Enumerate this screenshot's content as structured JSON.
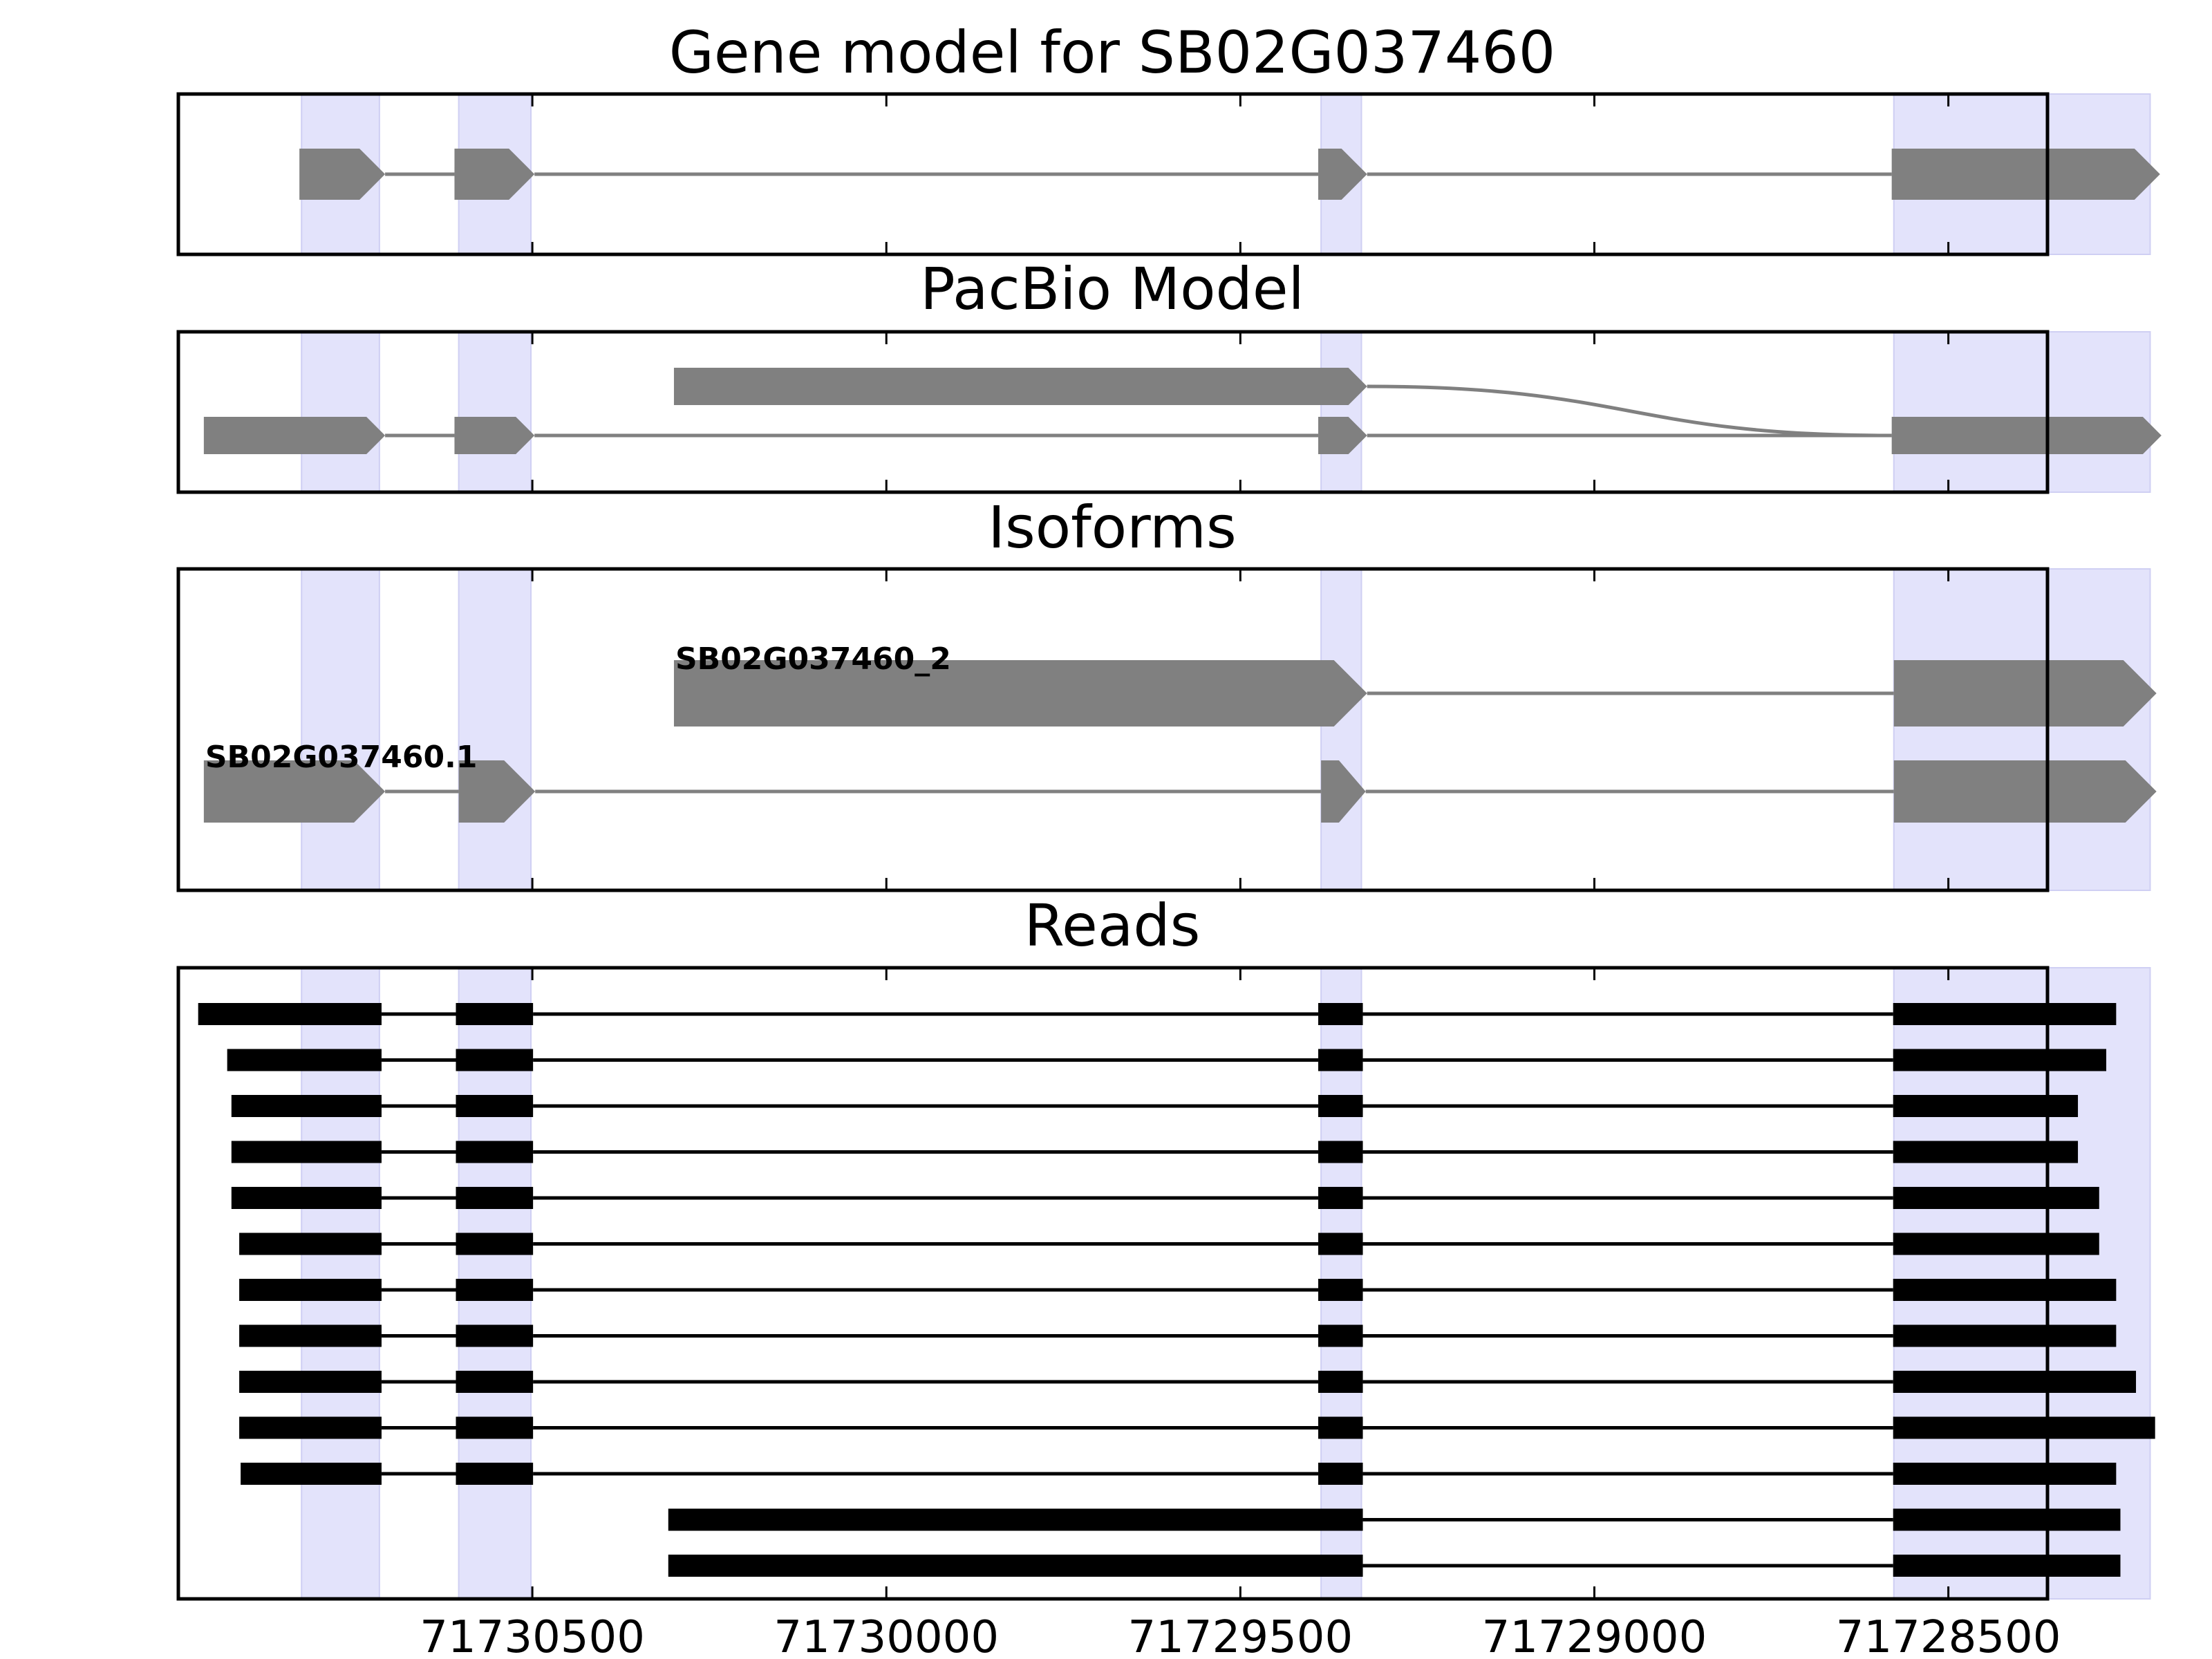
{
  "panels": [
    {
      "id": "gene",
      "title": "Gene model for SB02G037460"
    },
    {
      "id": "pacbio",
      "title": "PacBio Model"
    },
    {
      "id": "isoforms",
      "title": "Isoforms"
    },
    {
      "id": "reads",
      "title": "Reads"
    }
  ],
  "chart_data": {
    "type": "gene-structure",
    "x_axis": {
      "direction": "descending",
      "range": [
        71731000,
        71728360
      ],
      "ticks": [
        71730500,
        71730000,
        71729500,
        71729000,
        71728500
      ],
      "tick_labels": [
        "71730500",
        "71730000",
        "71729500",
        "71729000",
        "71728500"
      ]
    },
    "highlight_regions": [
      [
        71730826,
        71730716
      ],
      [
        71730604,
        71730502
      ],
      [
        71729386,
        71729329
      ],
      [
        71728577,
        71728215
      ]
    ],
    "colors": {
      "highlight": "#e3e3fb",
      "highlight_edge": "#cfcff3",
      "model": "#808080",
      "read": "#000000",
      "frame": "#000000"
    },
    "gene_model": [
      {
        "exons": [
          [
            71730829,
            71730708
          ],
          [
            71730610,
            71730497
          ],
          [
            71729390,
            71729321
          ],
          [
            71728580,
            71728201
          ]
        ]
      }
    ],
    "pacbio_model": [
      {
        "row": 0,
        "exons": [
          [
            71730964,
            71730708
          ],
          [
            71730610,
            71730497
          ],
          [
            71729390,
            71729321
          ],
          [
            71728580,
            71728199
          ]
        ]
      },
      {
        "row": 1,
        "exons": [
          [
            71730300,
            71729321
          ],
          [
            71728580,
            71728199
          ]
        ],
        "curved_intron": true
      }
    ],
    "isoforms": [
      {
        "name": "SB02G037460.1",
        "row": 0,
        "exons": [
          [
            71730964,
            71730708
          ],
          [
            71730604,
            71730496
          ],
          [
            71729386,
            71729323
          ],
          [
            71728577,
            71728206
          ]
        ]
      },
      {
        "name": "SB02G037460_2",
        "row": 1,
        "exons": [
          [
            71730300,
            71729321
          ],
          [
            71728577,
            71728206
          ]
        ]
      }
    ],
    "reads": [
      [
        [
          71730972,
          71730713
        ],
        [
          71730608,
          71730499
        ],
        [
          71729390,
          71729327
        ],
        [
          71728578,
          71728263
        ]
      ],
      [
        [
          71730931,
          71730713
        ],
        [
          71730608,
          71730499
        ],
        [
          71729390,
          71729327
        ],
        [
          71728578,
          71728277
        ]
      ],
      [
        [
          71730925,
          71730713
        ],
        [
          71730608,
          71730499
        ],
        [
          71729390,
          71729327
        ],
        [
          71728578,
          71728317
        ]
      ],
      [
        [
          71730925,
          71730713
        ],
        [
          71730608,
          71730499
        ],
        [
          71729390,
          71729327
        ],
        [
          71728578,
          71728317
        ]
      ],
      [
        [
          71730925,
          71730713
        ],
        [
          71730608,
          71730499
        ],
        [
          71729390,
          71729327
        ],
        [
          71728578,
          71728287
        ]
      ],
      [
        [
          71730914,
          71730713
        ],
        [
          71730608,
          71730499
        ],
        [
          71729390,
          71729327
        ],
        [
          71728578,
          71728287
        ]
      ],
      [
        [
          71730914,
          71730713
        ],
        [
          71730608,
          71730499
        ],
        [
          71729390,
          71729327
        ],
        [
          71728578,
          71728263
        ]
      ],
      [
        [
          71730914,
          71730713
        ],
        [
          71730608,
          71730499
        ],
        [
          71729390,
          71729327
        ],
        [
          71728578,
          71728263
        ]
      ],
      [
        [
          71730914,
          71730713
        ],
        [
          71730608,
          71730499
        ],
        [
          71729390,
          71729327
        ],
        [
          71728578,
          71728235
        ]
      ],
      [
        [
          71730914,
          71730713
        ],
        [
          71730608,
          71730499
        ],
        [
          71729390,
          71729327
        ],
        [
          71728578,
          71728208
        ]
      ],
      [
        [
          71730912,
          71730713
        ],
        [
          71730608,
          71730499
        ],
        [
          71729390,
          71729327
        ],
        [
          71728578,
          71728263
        ]
      ],
      [
        [
          71730308,
          71729327
        ],
        [
          71728578,
          71728257
        ]
      ],
      [
        [
          71730308,
          71729327
        ],
        [
          71728578,
          71728257
        ]
      ]
    ]
  }
}
